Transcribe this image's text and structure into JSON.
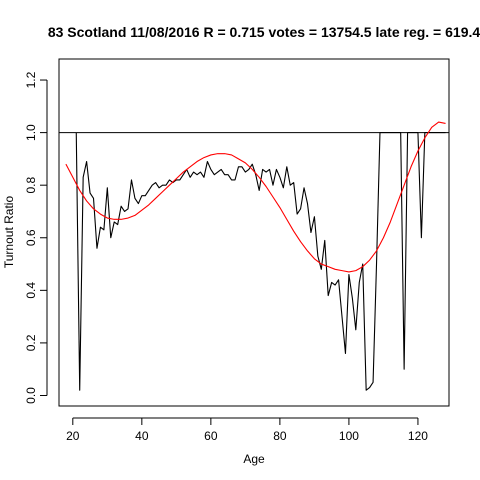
{
  "chart_data": {
    "type": "line",
    "title": "83 Scotland 11/08/2016 R = 0.715 votes = 13754.5 late reg. = 619.4",
    "xlabel": "Age",
    "ylabel": "Turnout Ratio",
    "xlim": [
      16,
      129
    ],
    "ylim": [
      -0.04,
      1.28
    ],
    "x_ticks": [
      20,
      40,
      60,
      80,
      100,
      120
    ],
    "x_tick_labels": [
      "20",
      "40",
      "60",
      "80",
      "100",
      "120"
    ],
    "y_ticks": [
      0.0,
      0.2,
      0.4,
      0.6,
      0.8,
      1.0,
      1.2
    ],
    "y_tick_labels": [
      "0.0",
      "0.2",
      "0.4",
      "0.6",
      "0.8",
      "1.0",
      "1.2"
    ],
    "reference_line": {
      "y": 1.0,
      "color": "#000000"
    },
    "grid": false,
    "legend": false,
    "series": [
      {
        "color": "#000000",
        "x": [
          21,
          22,
          23,
          24,
          25,
          26,
          27,
          28,
          29,
          30,
          31,
          32,
          33,
          34,
          35,
          36,
          37,
          38,
          39,
          40,
          41,
          42,
          43,
          44,
          45,
          46,
          47,
          48,
          49,
          50,
          51,
          52,
          53,
          54,
          55,
          56,
          57,
          58,
          59,
          60,
          61,
          62,
          63,
          64,
          65,
          66,
          67,
          68,
          69,
          70,
          71,
          72,
          73,
          74,
          75,
          76,
          77,
          78,
          79,
          80,
          81,
          82,
          83,
          84,
          85,
          86,
          87,
          88,
          89,
          90,
          91,
          92,
          93,
          94,
          95,
          96,
          97,
          98,
          99,
          100,
          101,
          102,
          103,
          104,
          105,
          106,
          107,
          108,
          109,
          110,
          111,
          112,
          113,
          114,
          115,
          116,
          117,
          118,
          119,
          120,
          121,
          122,
          123,
          124,
          125,
          126,
          127,
          128
        ],
        "y": [
          1.0,
          0.02,
          0.83,
          0.89,
          0.77,
          0.75,
          0.56,
          0.64,
          0.63,
          0.79,
          0.6,
          0.66,
          0.65,
          0.72,
          0.7,
          0.71,
          0.82,
          0.75,
          0.73,
          0.76,
          0.76,
          0.78,
          0.8,
          0.81,
          0.79,
          0.8,
          0.8,
          0.82,
          0.81,
          0.82,
          0.82,
          0.84,
          0.86,
          0.83,
          0.85,
          0.84,
          0.85,
          0.83,
          0.89,
          0.86,
          0.84,
          0.85,
          0.86,
          0.84,
          0.84,
          0.82,
          0.82,
          0.87,
          0.87,
          0.85,
          0.86,
          0.88,
          0.84,
          0.78,
          0.86,
          0.85,
          0.86,
          0.8,
          0.86,
          0.83,
          0.79,
          0.87,
          0.8,
          0.81,
          0.69,
          0.71,
          0.79,
          0.73,
          0.62,
          0.68,
          0.53,
          0.48,
          0.59,
          0.38,
          0.43,
          0.42,
          0.44,
          0.3,
          0.16,
          0.46,
          0.37,
          0.25,
          0.43,
          0.5,
          0.02,
          0.03,
          0.05,
          0.5,
          1.0,
          1.0,
          1.0,
          1.0,
          1.0,
          1.0,
          1.0,
          0.1,
          1.0,
          1.0,
          1.0,
          1.0,
          0.6,
          1.0,
          1.0,
          1.0,
          1.0,
          1.0,
          1.0,
          1.0
        ]
      },
      {
        "color": "#ff0000",
        "x": [
          18,
          20,
          22,
          24,
          26,
          28,
          30,
          32,
          34,
          36,
          38,
          40,
          42,
          44,
          46,
          48,
          50,
          52,
          54,
          56,
          58,
          60,
          62,
          64,
          66,
          68,
          70,
          72,
          74,
          76,
          78,
          80,
          82,
          84,
          86,
          88,
          90,
          92,
          94,
          96,
          98,
          100,
          102,
          104,
          106,
          108,
          110,
          112,
          114,
          116,
          118,
          120,
          122,
          124,
          126,
          128
        ],
        "y": [
          0.88,
          0.83,
          0.78,
          0.74,
          0.71,
          0.69,
          0.675,
          0.67,
          0.67,
          0.675,
          0.685,
          0.705,
          0.725,
          0.75,
          0.775,
          0.8,
          0.825,
          0.85,
          0.87,
          0.89,
          0.905,
          0.915,
          0.92,
          0.92,
          0.915,
          0.9,
          0.885,
          0.86,
          0.83,
          0.795,
          0.755,
          0.715,
          0.67,
          0.625,
          0.585,
          0.55,
          0.52,
          0.5,
          0.49,
          0.48,
          0.475,
          0.47,
          0.475,
          0.49,
          0.515,
          0.55,
          0.6,
          0.66,
          0.73,
          0.8,
          0.87,
          0.93,
          0.98,
          1.02,
          1.04,
          1.035
        ]
      }
    ]
  }
}
